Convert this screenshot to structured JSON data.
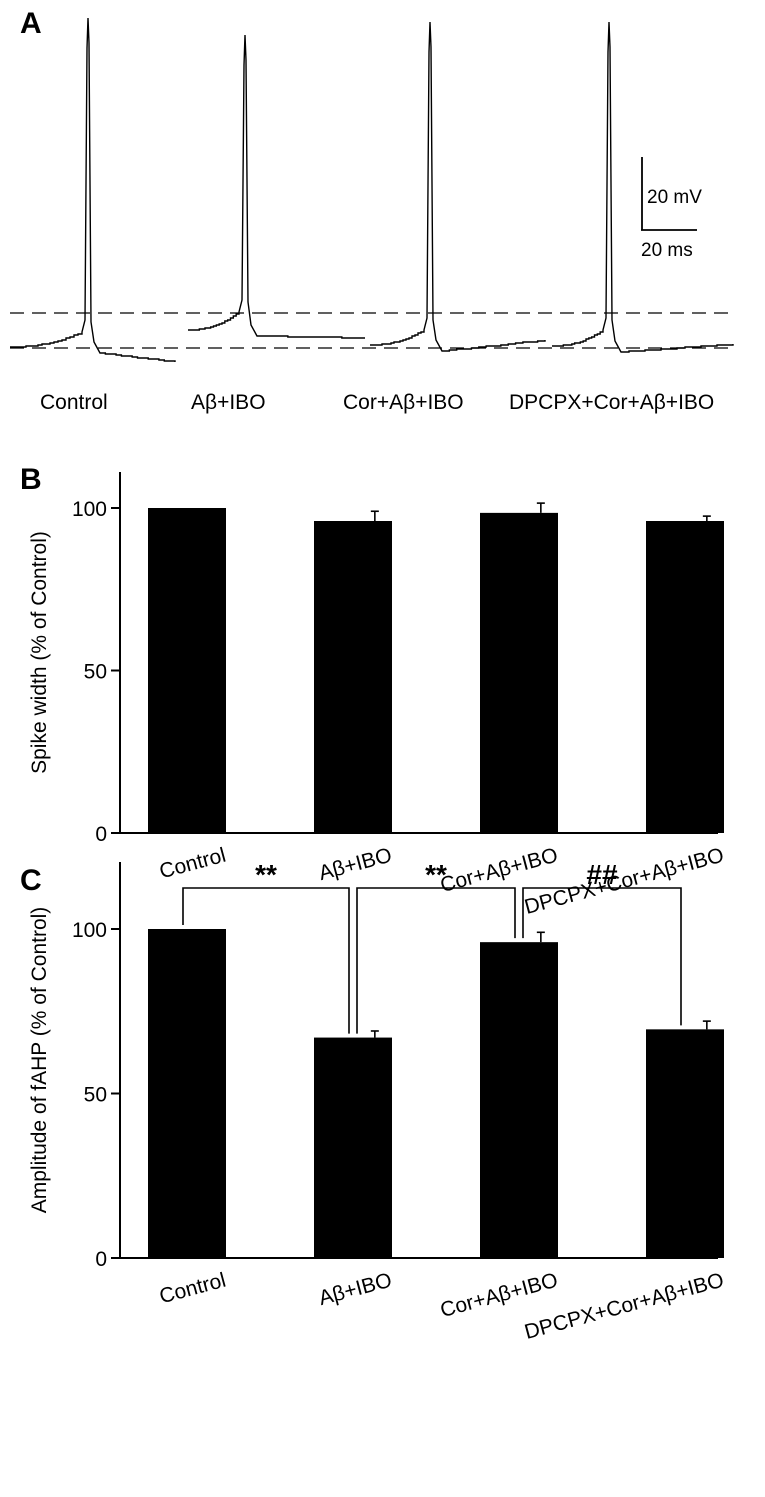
{
  "panel_a": {
    "letter": "A",
    "conditions": [
      "Control",
      "Aβ+IBO",
      "Cor+Aβ+IBO",
      "DPCPX+Cor+Aβ+IBO"
    ],
    "scale_bar": {
      "voltage": "20 mV",
      "time": "20 ms"
    }
  },
  "chart_data": [
    {
      "panel": "B",
      "type": "bar",
      "categories": [
        "Control",
        "Aβ+IBO",
        "Cor+Aβ+IBO",
        "DPCPX+Cor+Aβ+IBO"
      ],
      "values": [
        100,
        96,
        98.5,
        96
      ],
      "errors": [
        0,
        3,
        3,
        1.5
      ],
      "ylabel": "Spike width (% of Control)",
      "ylim": [
        0,
        110
      ],
      "yticks": [
        0,
        50,
        100
      ],
      "bar_color": "#000000",
      "grid": false,
      "significance": []
    },
    {
      "panel": "C",
      "type": "bar",
      "categories": [
        "Control",
        "Aβ+IBO",
        "Cor+Aβ+IBO",
        "DPCPX+Cor+Aβ+IBO"
      ],
      "values": [
        100,
        67,
        96,
        69.5
      ],
      "errors": [
        0,
        2,
        3,
        2.5
      ],
      "ylabel": "Amplitude of fAHP (% of Control)",
      "ylim": [
        0,
        120
      ],
      "yticks": [
        0,
        50,
        100
      ],
      "bar_color": "#000000",
      "grid": false,
      "significance": [
        {
          "from": 0,
          "to": 1,
          "label": "**"
        },
        {
          "from": 1,
          "to": 2,
          "label": "**"
        },
        {
          "from": 2,
          "to": 3,
          "label": "##"
        }
      ]
    }
  ]
}
